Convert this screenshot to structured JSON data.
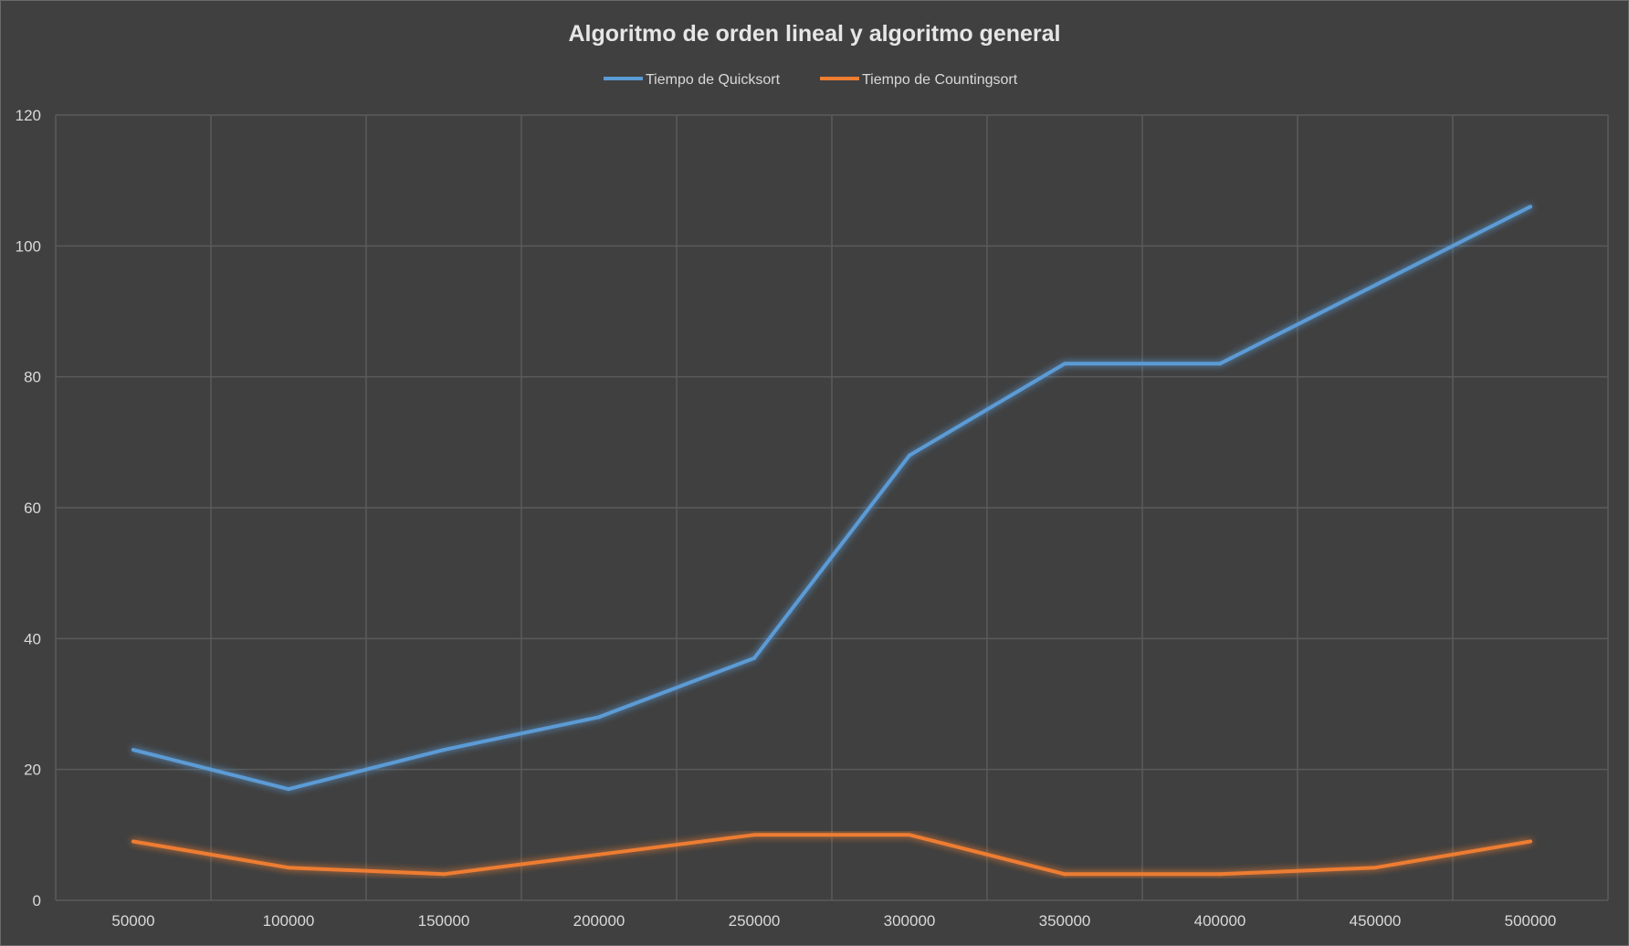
{
  "chart_data": {
    "type": "line",
    "title": "Algoritmo de orden lineal y algoritmo general",
    "xlabel": "",
    "ylabel": "",
    "categories": [
      "50000",
      "100000",
      "150000",
      "200000",
      "250000",
      "300000",
      "350000",
      "400000",
      "450000",
      "500000"
    ],
    "ylim": [
      0,
      120
    ],
    "yticks": [
      "0",
      "20",
      "40",
      "60",
      "80",
      "100",
      "120"
    ],
    "grid": true,
    "legend_position": "top",
    "series": [
      {
        "name": "Tiempo de Quicksort",
        "color": "#5b9bd5",
        "values": [
          23,
          17,
          23,
          28,
          37,
          68,
          82,
          82,
          94,
          106
        ]
      },
      {
        "name": "Tiempo de Countingsort",
        "color": "#ed7d31",
        "values": [
          9,
          5,
          4,
          7,
          10,
          10,
          4,
          4,
          5,
          9
        ]
      }
    ]
  },
  "colors": {
    "background": "#404040",
    "grid": "#5a5a5a",
    "text": "#d9d9d9"
  }
}
